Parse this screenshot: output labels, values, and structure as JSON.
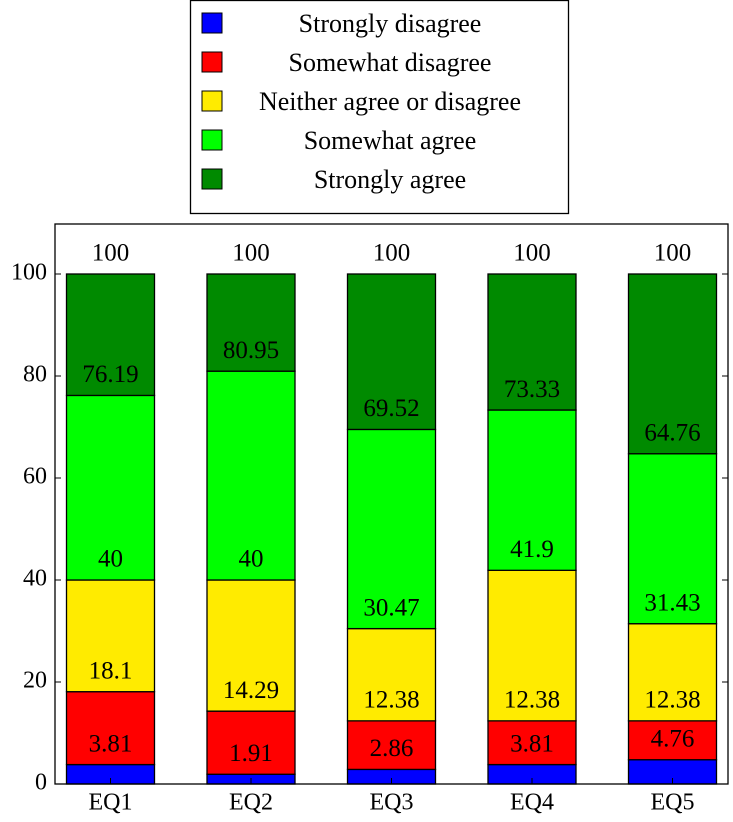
{
  "chart_data": {
    "type": "bar",
    "stacked": true,
    "title": "",
    "xlabel": "",
    "ylabel": "",
    "ylim": [
      0,
      110
    ],
    "yticks": [
      0,
      20,
      40,
      60,
      80,
      100
    ],
    "grid": false,
    "legend_position": "top-center",
    "categories": [
      "EQ1",
      "EQ2",
      "EQ3",
      "EQ4",
      "EQ5"
    ],
    "series": [
      {
        "name": "Strongly disagree",
        "color": "#0000ff",
        "values": [
          3.81,
          1.91,
          2.86,
          3.81,
          4.76
        ]
      },
      {
        "name": "Somewhat disagree",
        "color": "#ff0000",
        "values": [
          14.29,
          12.38,
          9.52,
          8.57,
          7.62
        ]
      },
      {
        "name": "Neither agree or disagree",
        "color": "#ffeb00",
        "values": [
          21.9,
          25.71,
          18.09,
          29.52,
          19.05
        ]
      },
      {
        "name": "Somewhat agree",
        "color": "#00ff00",
        "values": [
          36.19,
          40.95,
          39.05,
          31.43,
          33.33
        ]
      },
      {
        "name": "Strongly agree",
        "color": "#008a00",
        "values": [
          23.81,
          19.05,
          30.48,
          26.67,
          35.24
        ]
      }
    ],
    "cumulative_labels": [
      [
        "3.81",
        "18.1",
        "40",
        "76.19",
        "100"
      ],
      [
        "1.91",
        "14.29",
        "40",
        "80.95",
        "100"
      ],
      [
        "2.86",
        "12.38",
        "30.47",
        "69.52",
        "100"
      ],
      [
        "3.81",
        "12.38",
        "41.9",
        "73.33",
        "100"
      ],
      [
        "4.76",
        "12.38",
        "31.43",
        "64.76",
        "100"
      ]
    ]
  }
}
